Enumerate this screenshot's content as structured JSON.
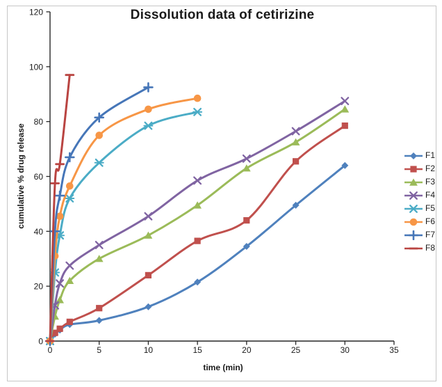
{
  "figure": {
    "border_color": "#c6c6c6",
    "background": "#ffffff",
    "axis_color": "#262626"
  },
  "chart_data": {
    "type": "line",
    "title": "Dissolution data of cetirizine",
    "xlabel": "time (min)",
    "ylabel": "cumulative % drug release",
    "xlim": [
      0,
      35
    ],
    "ylim": [
      0,
      120
    ],
    "x_ticks": [
      0,
      5,
      10,
      15,
      20,
      25,
      30,
      35
    ],
    "y_ticks": [
      0,
      20,
      40,
      60,
      80,
      100,
      120
    ],
    "grid": false,
    "smoothed_lines": true,
    "legend_position": "right",
    "series": [
      {
        "name": "F1",
        "color": "#4F81BD",
        "marker": "diamond",
        "x": [
          0,
          0.5,
          1,
          2,
          5,
          10,
          15,
          20,
          25,
          30
        ],
        "y": [
          0,
          2.5,
          4,
          6,
          7.5,
          12.5,
          21.5,
          34.5,
          49.5,
          64
        ]
      },
      {
        "name": "F2",
        "color": "#C0504D",
        "marker": "square",
        "x": [
          0,
          0.5,
          1,
          2,
          5,
          10,
          15,
          20,
          25,
          30
        ],
        "y": [
          0,
          3,
          4.5,
          7,
          12,
          24,
          36.5,
          44,
          65.5,
          78.5
        ]
      },
      {
        "name": "F3",
        "color": "#9BBB59",
        "marker": "triangle",
        "x": [
          0,
          0.5,
          1,
          2,
          5,
          10,
          15,
          20,
          25,
          30
        ],
        "y": [
          0,
          9,
          15,
          22,
          30,
          38.5,
          49.5,
          63,
          72.5,
          84.5
        ]
      },
      {
        "name": "F4",
        "color": "#8064A2",
        "marker": "x",
        "x": [
          0,
          0.5,
          1,
          2,
          5,
          10,
          15,
          20,
          25,
          30
        ],
        "y": [
          0,
          13,
          21,
          27.5,
          35,
          45.5,
          58.5,
          66.5,
          76.5,
          87.5
        ]
      },
      {
        "name": "F5",
        "color": "#4BACC6",
        "marker": "star",
        "x": [
          0,
          0.5,
          1,
          2,
          5,
          10,
          15
        ],
        "y": [
          0,
          25,
          38.5,
          52,
          65,
          78.5,
          83.5
        ]
      },
      {
        "name": "F6",
        "color": "#F79646",
        "marker": "circle",
        "x": [
          0,
          0.5,
          1,
          2,
          5,
          10,
          15
        ],
        "y": [
          0,
          31,
          45.5,
          56.5,
          75,
          84.5,
          88.5
        ]
      },
      {
        "name": "F7",
        "color": "#4676B8",
        "marker": "plus",
        "x": [
          0,
          0.5,
          1,
          2,
          5,
          10
        ],
        "y": [
          0,
          40,
          53,
          67,
          81.5,
          92.5
        ]
      },
      {
        "name": "F8",
        "color": "#B94441",
        "marker": "dash",
        "x": [
          0,
          0.5,
          1,
          2
        ],
        "y": [
          0,
          57.5,
          64.5,
          97
        ]
      }
    ]
  }
}
